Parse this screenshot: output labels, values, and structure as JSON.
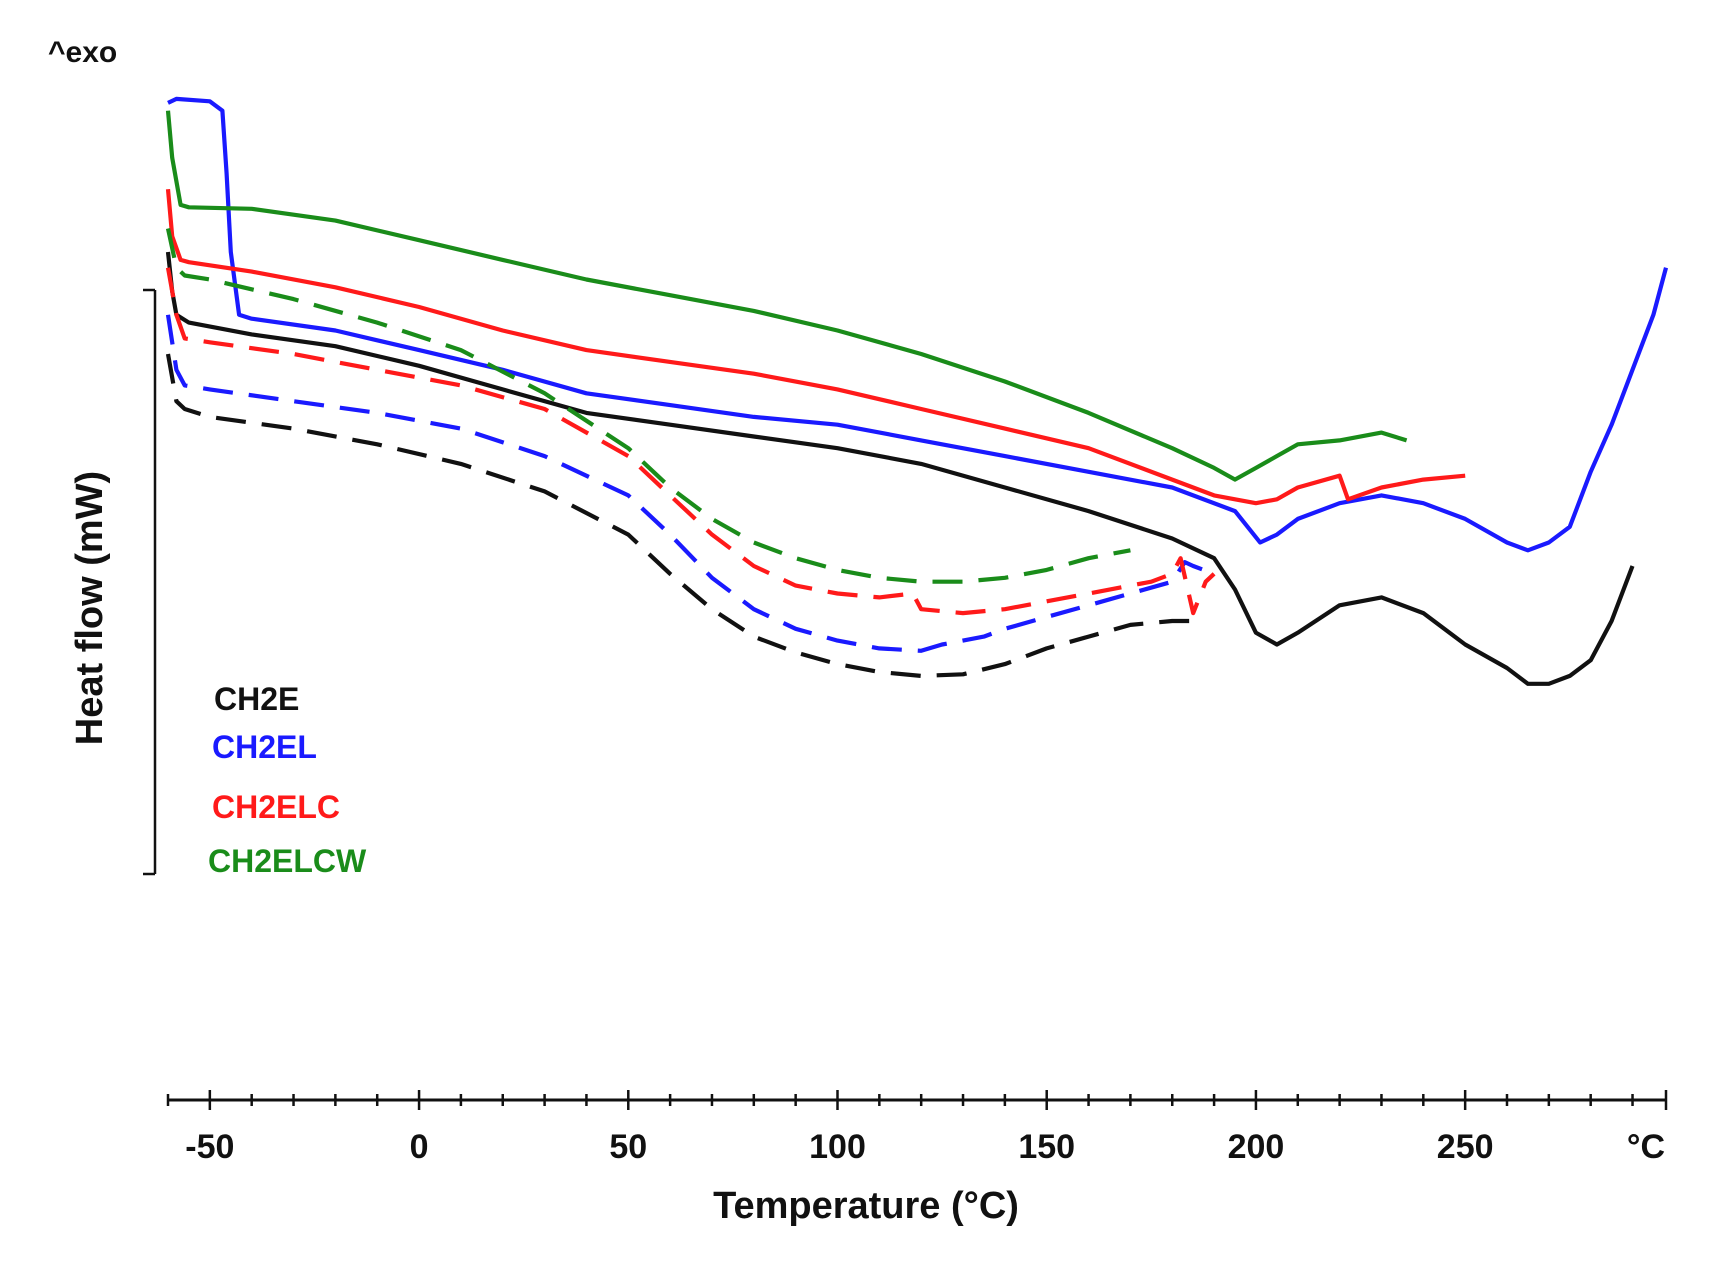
{
  "chart_data": {
    "type": "line",
    "exo_label": "^exo",
    "ylabel": "Heat flow (mW)",
    "xlabel": "Temperature (°C)",
    "x_unit_label": "°C",
    "xlim": [
      -60,
      298
    ],
    "ylim": [
      0,
      100
    ],
    "x_ticks": [
      {
        "value": -50,
        "label": "-50"
      },
      {
        "value": 0,
        "label": "0"
      },
      {
        "value": 50,
        "label": "50"
      },
      {
        "value": 100,
        "label": "100"
      },
      {
        "value": 150,
        "label": "150"
      },
      {
        "value": 200,
        "label": "200"
      },
      {
        "value": 250,
        "label": "250"
      }
    ],
    "legend": [
      {
        "name": "CH2E",
        "color": "#111111"
      },
      {
        "name": "CH2EL",
        "color": "#1a1aff"
      },
      {
        "name": "CH2ELC",
        "color": "#ff1a1a"
      },
      {
        "name": "CH2ELCW",
        "color": "#1a8c1a"
      }
    ],
    "series": [
      {
        "name": "CH2E",
        "color": "#111111",
        "style": "solid",
        "points": [
          [
            -60,
            80
          ],
          [
            -59,
            75
          ],
          [
            -58,
            72
          ],
          [
            -55,
            71
          ],
          [
            -40,
            69.5
          ],
          [
            -20,
            68
          ],
          [
            0,
            65.5
          ],
          [
            20,
            62.5
          ],
          [
            40,
            59.5
          ],
          [
            60,
            58
          ],
          [
            80,
            56.5
          ],
          [
            100,
            55
          ],
          [
            120,
            53
          ],
          [
            140,
            50
          ],
          [
            160,
            47
          ],
          [
            180,
            43.5
          ],
          [
            190,
            41
          ],
          [
            195,
            37
          ],
          [
            200,
            31.5
          ],
          [
            205,
            30
          ],
          [
            210,
            31.5
          ],
          [
            220,
            35
          ],
          [
            230,
            36
          ],
          [
            240,
            34
          ],
          [
            250,
            30
          ],
          [
            260,
            27
          ],
          [
            265,
            25
          ],
          [
            270,
            25
          ],
          [
            275,
            26
          ],
          [
            280,
            28
          ],
          [
            285,
            33
          ],
          [
            290,
            40
          ]
        ]
      },
      {
        "name": "CH2EL",
        "color": "#1a1aff",
        "style": "solid",
        "points": [
          [
            -60,
            99
          ],
          [
            -58,
            99.5
          ],
          [
            -50,
            99.2
          ],
          [
            -47,
            98
          ],
          [
            -46,
            90
          ],
          [
            -45,
            80
          ],
          [
            -43,
            72
          ],
          [
            -40,
            71.5
          ],
          [
            -20,
            70
          ],
          [
            0,
            67.5
          ],
          [
            20,
            65
          ],
          [
            40,
            62
          ],
          [
            60,
            60.5
          ],
          [
            80,
            59
          ],
          [
            100,
            58
          ],
          [
            120,
            56
          ],
          [
            140,
            54
          ],
          [
            160,
            52
          ],
          [
            180,
            50
          ],
          [
            195,
            47
          ],
          [
            201,
            43
          ],
          [
            205,
            44
          ],
          [
            210,
            46
          ],
          [
            220,
            48
          ],
          [
            230,
            49
          ],
          [
            240,
            48
          ],
          [
            250,
            46
          ],
          [
            260,
            43
          ],
          [
            265,
            42
          ],
          [
            270,
            43
          ],
          [
            275,
            45
          ],
          [
            280,
            52
          ],
          [
            285,
            58
          ],
          [
            290,
            65
          ],
          [
            295,
            72
          ],
          [
            298,
            78
          ]
        ]
      },
      {
        "name": "CH2ELC",
        "color": "#ff1a1a",
        "style": "solid",
        "points": [
          [
            -60,
            88
          ],
          [
            -59,
            82
          ],
          [
            -57,
            79
          ],
          [
            -55,
            78.7
          ],
          [
            -40,
            77.5
          ],
          [
            -20,
            75.5
          ],
          [
            0,
            73
          ],
          [
            20,
            70
          ],
          [
            40,
            67.5
          ],
          [
            60,
            66
          ],
          [
            80,
            64.5
          ],
          [
            100,
            62.5
          ],
          [
            120,
            60
          ],
          [
            140,
            57.5
          ],
          [
            160,
            55
          ],
          [
            180,
            51
          ],
          [
            190,
            49
          ],
          [
            200,
            48
          ],
          [
            205,
            48.5
          ],
          [
            210,
            50
          ],
          [
            220,
            51.5
          ],
          [
            222,
            48.5
          ],
          [
            230,
            50
          ],
          [
            240,
            51
          ],
          [
            250,
            51.5
          ]
        ]
      },
      {
        "name": "CH2ELCW",
        "color": "#1a8c1a",
        "style": "solid",
        "points": [
          [
            -60,
            98
          ],
          [
            -59,
            92
          ],
          [
            -57,
            86
          ],
          [
            -55,
            85.7
          ],
          [
            -40,
            85.5
          ],
          [
            -20,
            84
          ],
          [
            0,
            81.5
          ],
          [
            20,
            79
          ],
          [
            40,
            76.5
          ],
          [
            60,
            74.5
          ],
          [
            80,
            72.5
          ],
          [
            100,
            70
          ],
          [
            120,
            67
          ],
          [
            140,
            63.5
          ],
          [
            160,
            59.5
          ],
          [
            180,
            55
          ],
          [
            190,
            52.5
          ],
          [
            195,
            51
          ],
          [
            200,
            52.5
          ],
          [
            205,
            54
          ],
          [
            210,
            55.5
          ],
          [
            220,
            56
          ],
          [
            230,
            57
          ],
          [
            236,
            56
          ]
        ]
      },
      {
        "name": "CH2E dashed",
        "color": "#111111",
        "style": "dashed",
        "points": [
          [
            -60,
            67
          ],
          [
            -58,
            61
          ],
          [
            -56,
            60
          ],
          [
            -50,
            59
          ],
          [
            -30,
            57.5
          ],
          [
            -10,
            55.5
          ],
          [
            10,
            53
          ],
          [
            30,
            49.5
          ],
          [
            50,
            44
          ],
          [
            60,
            39
          ],
          [
            70,
            34.5
          ],
          [
            80,
            31
          ],
          [
            90,
            29
          ],
          [
            100,
            27.5
          ],
          [
            110,
            26.5
          ],
          [
            120,
            26
          ],
          [
            130,
            26.2
          ],
          [
            140,
            27.5
          ],
          [
            150,
            29.5
          ],
          [
            160,
            31
          ],
          [
            170,
            32.5
          ],
          [
            180,
            33
          ],
          [
            185,
            33
          ]
        ]
      },
      {
        "name": "CH2EL dashed",
        "color": "#1a1aff",
        "style": "dashed",
        "points": [
          [
            -60,
            72
          ],
          [
            -58,
            65
          ],
          [
            -56,
            63
          ],
          [
            -50,
            62.5
          ],
          [
            -30,
            61
          ],
          [
            -10,
            59.5
          ],
          [
            10,
            57.5
          ],
          [
            30,
            54
          ],
          [
            50,
            49
          ],
          [
            60,
            44
          ],
          [
            70,
            38.5
          ],
          [
            80,
            34.5
          ],
          [
            90,
            32
          ],
          [
            100,
            30.5
          ],
          [
            110,
            29.5
          ],
          [
            120,
            29.2
          ],
          [
            125,
            30
          ],
          [
            130,
            30.5
          ],
          [
            135,
            31
          ],
          [
            140,
            32
          ],
          [
            150,
            33.5
          ],
          [
            160,
            35
          ],
          [
            170,
            36.5
          ],
          [
            180,
            38
          ],
          [
            183,
            40.5
          ],
          [
            185,
            40
          ],
          [
            190,
            39
          ]
        ]
      },
      {
        "name": "CH2ELC dashed",
        "color": "#ff1a1a",
        "style": "dashed",
        "points": [
          [
            -60,
            78
          ],
          [
            -58,
            72
          ],
          [
            -56,
            69
          ],
          [
            -50,
            68.5
          ],
          [
            -30,
            67
          ],
          [
            -10,
            65
          ],
          [
            10,
            63
          ],
          [
            30,
            60
          ],
          [
            50,
            54
          ],
          [
            60,
            49
          ],
          [
            70,
            44
          ],
          [
            80,
            40
          ],
          [
            90,
            37.5
          ],
          [
            100,
            36.5
          ],
          [
            110,
            36
          ],
          [
            118,
            36.5
          ],
          [
            120,
            34.5
          ],
          [
            130,
            34
          ],
          [
            140,
            34.5
          ],
          [
            150,
            35.5
          ],
          [
            160,
            36.5
          ],
          [
            170,
            37.5
          ],
          [
            175,
            38
          ],
          [
            180,
            39
          ],
          [
            182,
            41
          ],
          [
            185,
            34
          ],
          [
            188,
            38
          ],
          [
            190,
            39
          ]
        ]
      },
      {
        "name": "CH2ELCW dashed",
        "color": "#1a8c1a",
        "style": "dashed",
        "points": [
          [
            -60,
            83
          ],
          [
            -58,
            78
          ],
          [
            -56,
            77
          ],
          [
            -50,
            76.5
          ],
          [
            -30,
            74
          ],
          [
            -10,
            71
          ],
          [
            10,
            67.5
          ],
          [
            30,
            62
          ],
          [
            50,
            55
          ],
          [
            60,
            50
          ],
          [
            70,
            46
          ],
          [
            80,
            43
          ],
          [
            90,
            41
          ],
          [
            100,
            39.5
          ],
          [
            110,
            38.5
          ],
          [
            120,
            38
          ],
          [
            130,
            38
          ],
          [
            140,
            38.5
          ],
          [
            150,
            39.5
          ],
          [
            160,
            41
          ],
          [
            170,
            42
          ]
        ]
      }
    ]
  }
}
